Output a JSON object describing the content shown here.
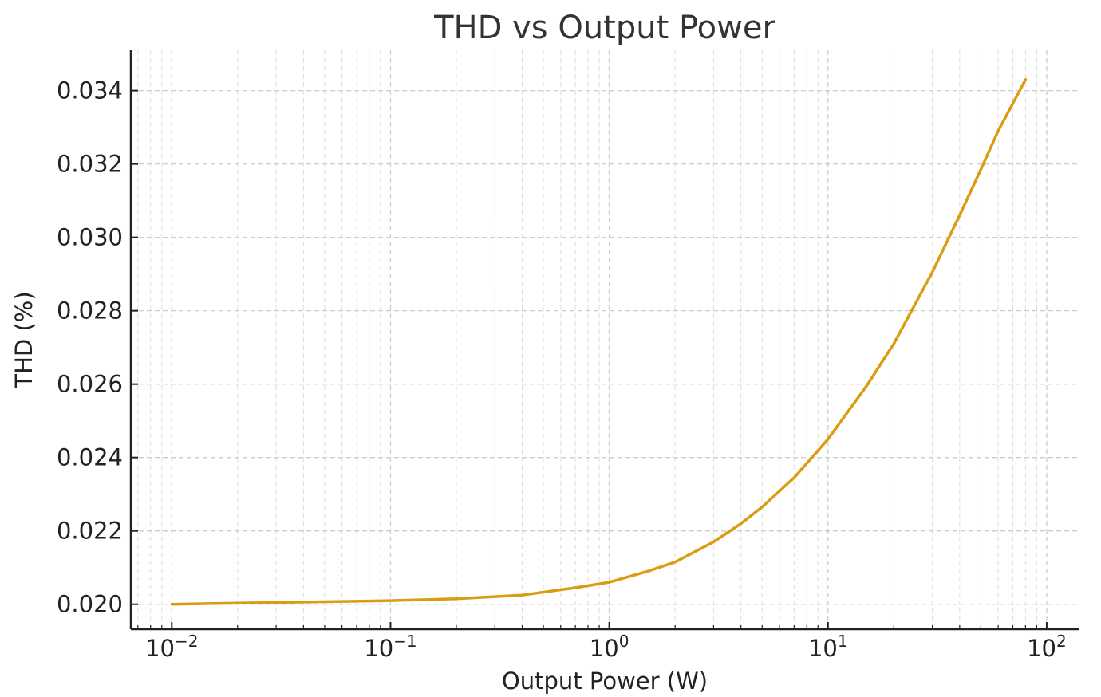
{
  "chart_data": {
    "type": "line",
    "title": "THD vs Output Power",
    "xlabel": "Output Power (W)",
    "ylabel": "THD (%)",
    "xscale": "log",
    "xlim": [
      0.0065,
      140
    ],
    "ylim": [
      0.01932,
      0.0351
    ],
    "grid": true,
    "line_color": "#d99c12",
    "x_ticks": [
      {
        "base": "10",
        "exp": "−2",
        "value": 0.01
      },
      {
        "base": "10",
        "exp": "−1",
        "value": 0.1
      },
      {
        "base": "10",
        "exp": "0",
        "value": 1
      },
      {
        "base": "10",
        "exp": "1",
        "value": 10
      },
      {
        "base": "10",
        "exp": "2",
        "value": 100
      }
    ],
    "y_ticks": [
      "0.020",
      "0.022",
      "0.024",
      "0.026",
      "0.028",
      "0.030",
      "0.032",
      "0.034"
    ],
    "series": [
      {
        "x": [
          0.01,
          0.02,
          0.05,
          0.1,
          0.2,
          0.4,
          0.7,
          1.0,
          1.5,
          2,
          3,
          4,
          5,
          7,
          10,
          15,
          20,
          30,
          40,
          50,
          60,
          70,
          80
        ],
        "y": [
          0.02,
          0.02003,
          0.02007,
          0.0201,
          0.02015,
          0.02025,
          0.02045,
          0.0206,
          0.0209,
          0.02115,
          0.0217,
          0.0222,
          0.02265,
          0.02345,
          0.0245,
          0.02595,
          0.0271,
          0.02905,
          0.0306,
          0.03185,
          0.0329,
          0.03365,
          0.0343
        ]
      }
    ]
  }
}
